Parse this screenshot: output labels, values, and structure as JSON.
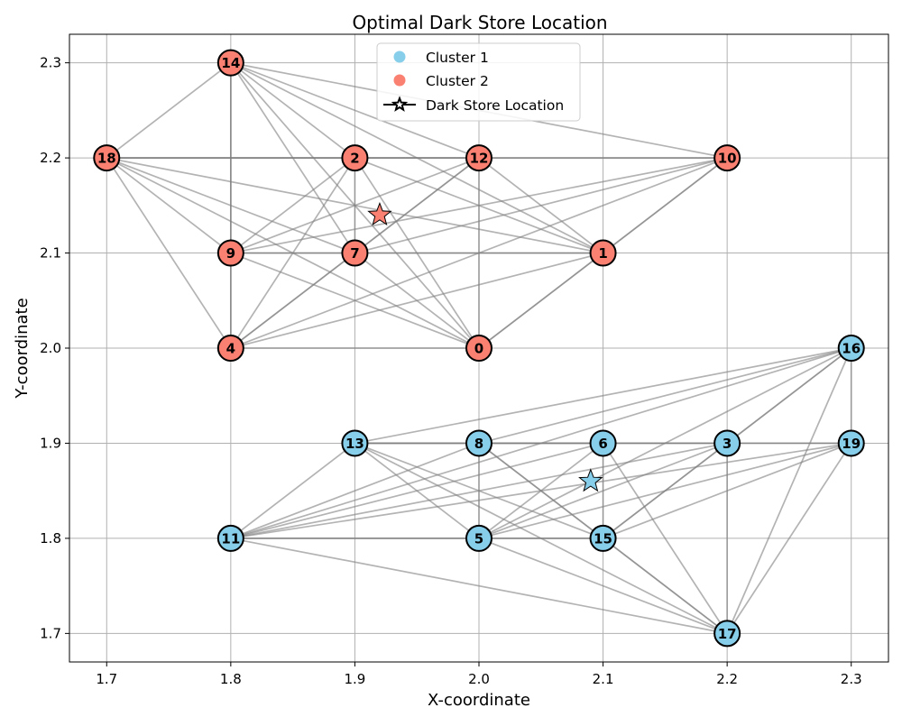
{
  "chart_data": {
    "type": "scatter",
    "title": "Optimal Dark Store Location",
    "xlabel": "X-coordinate",
    "ylabel": "Y-coordinate",
    "xlim": [
      1.67,
      2.33
    ],
    "ylim": [
      1.67,
      2.33
    ],
    "xticks": [
      "1.7",
      "1.8",
      "1.9",
      "2.0",
      "2.1",
      "2.2",
      "2.3"
    ],
    "yticks": [
      "1.7",
      "1.8",
      "1.9",
      "2.0",
      "2.1",
      "2.2",
      "2.3"
    ],
    "grid": true,
    "legend_position": "top-center",
    "colors": {
      "cluster_1": "#87ceeb",
      "cluster_2": "#fa8072",
      "edge": "#808080",
      "grid": "#b0b0b0"
    },
    "legend": [
      {
        "label": "Cluster 1",
        "marker": "circle",
        "color": "#87ceeb"
      },
      {
        "label": "Cluster 2",
        "marker": "circle",
        "color": "#fa8072"
      },
      {
        "label": "Dark Store Location",
        "marker": "star-line",
        "color": "#000000"
      }
    ],
    "nodes": [
      {
        "id": "0",
        "x": 2.0,
        "y": 2.0,
        "cluster": 2
      },
      {
        "id": "1",
        "x": 2.1,
        "y": 2.1,
        "cluster": 2
      },
      {
        "id": "2",
        "x": 1.9,
        "y": 2.2,
        "cluster": 2
      },
      {
        "id": "3",
        "x": 2.2,
        "y": 1.9,
        "cluster": 1
      },
      {
        "id": "4",
        "x": 1.8,
        "y": 2.0,
        "cluster": 2
      },
      {
        "id": "5",
        "x": 2.0,
        "y": 1.8,
        "cluster": 1
      },
      {
        "id": "6",
        "x": 2.1,
        "y": 1.9,
        "cluster": 1
      },
      {
        "id": "7",
        "x": 1.9,
        "y": 2.1,
        "cluster": 2
      },
      {
        "id": "8",
        "x": 2.0,
        "y": 1.9,
        "cluster": 1
      },
      {
        "id": "9",
        "x": 1.8,
        "y": 2.1,
        "cluster": 2
      },
      {
        "id": "10",
        "x": 2.2,
        "y": 2.2,
        "cluster": 2
      },
      {
        "id": "11",
        "x": 1.8,
        "y": 1.8,
        "cluster": 1
      },
      {
        "id": "12",
        "x": 2.0,
        "y": 2.2,
        "cluster": 2
      },
      {
        "id": "13",
        "x": 1.9,
        "y": 1.9,
        "cluster": 1
      },
      {
        "id": "14",
        "x": 1.8,
        "y": 2.3,
        "cluster": 2
      },
      {
        "id": "15",
        "x": 2.1,
        "y": 1.8,
        "cluster": 1
      },
      {
        "id": "16",
        "x": 2.3,
        "y": 2.0,
        "cluster": 1
      },
      {
        "id": "17",
        "x": 2.2,
        "y": 1.7,
        "cluster": 1
      },
      {
        "id": "18",
        "x": 1.7,
        "y": 2.2,
        "cluster": 2
      },
      {
        "id": "19",
        "x": 2.3,
        "y": 1.9,
        "cluster": 1
      }
    ],
    "dark_stores": [
      {
        "cluster": 2,
        "x": 1.92,
        "y": 2.14
      },
      {
        "cluster": 1,
        "x": 2.09,
        "y": 1.86
      }
    ],
    "edges": [
      [
        "14",
        "18"
      ],
      [
        "14",
        "9"
      ],
      [
        "14",
        "4"
      ],
      [
        "14",
        "2"
      ],
      [
        "14",
        "7"
      ],
      [
        "14",
        "12"
      ],
      [
        "14",
        "1"
      ],
      [
        "14",
        "0"
      ],
      [
        "14",
        "10"
      ],
      [
        "18",
        "2"
      ],
      [
        "18",
        "12"
      ],
      [
        "18",
        "10"
      ],
      [
        "18",
        "9"
      ],
      [
        "18",
        "4"
      ],
      [
        "18",
        "7"
      ],
      [
        "18",
        "0"
      ],
      [
        "18",
        "1"
      ],
      [
        "2",
        "12"
      ],
      [
        "2",
        "9"
      ],
      [
        "2",
        "7"
      ],
      [
        "2",
        "4"
      ],
      [
        "2",
        "0"
      ],
      [
        "2",
        "1"
      ],
      [
        "12",
        "10"
      ],
      [
        "12",
        "9"
      ],
      [
        "12",
        "7"
      ],
      [
        "12",
        "4"
      ],
      [
        "12",
        "0"
      ],
      [
        "12",
        "1"
      ],
      [
        "10",
        "1"
      ],
      [
        "10",
        "0"
      ],
      [
        "10",
        "9"
      ],
      [
        "10",
        "7"
      ],
      [
        "10",
        "4"
      ],
      [
        "9",
        "7"
      ],
      [
        "9",
        "1"
      ],
      [
        "9",
        "4"
      ],
      [
        "9",
        "0"
      ],
      [
        "7",
        "1"
      ],
      [
        "7",
        "4"
      ],
      [
        "7",
        "0"
      ],
      [
        "4",
        "0"
      ],
      [
        "4",
        "1"
      ],
      [
        "1",
        "0"
      ],
      [
        "13",
        "8"
      ],
      [
        "13",
        "6"
      ],
      [
        "13",
        "3"
      ],
      [
        "13",
        "19"
      ],
      [
        "13",
        "16"
      ],
      [
        "13",
        "11"
      ],
      [
        "13",
        "5"
      ],
      [
        "13",
        "15"
      ],
      [
        "13",
        "17"
      ],
      [
        "8",
        "6"
      ],
      [
        "8",
        "5"
      ],
      [
        "8",
        "15"
      ],
      [
        "8",
        "11"
      ],
      [
        "8",
        "16"
      ],
      [
        "8",
        "17"
      ],
      [
        "6",
        "3"
      ],
      [
        "6",
        "15"
      ],
      [
        "6",
        "17"
      ],
      [
        "6",
        "5"
      ],
      [
        "6",
        "11"
      ],
      [
        "3",
        "19"
      ],
      [
        "3",
        "16"
      ],
      [
        "3",
        "15"
      ],
      [
        "3",
        "17"
      ],
      [
        "3",
        "11"
      ],
      [
        "3",
        "5"
      ],
      [
        "19",
        "16"
      ],
      [
        "19",
        "17"
      ],
      [
        "19",
        "11"
      ],
      [
        "19",
        "5"
      ],
      [
        "19",
        "15"
      ],
      [
        "16",
        "17"
      ],
      [
        "16",
        "5"
      ],
      [
        "16",
        "11"
      ],
      [
        "16",
        "15"
      ],
      [
        "11",
        "5"
      ],
      [
        "11",
        "15"
      ],
      [
        "11",
        "17"
      ],
      [
        "5",
        "15"
      ],
      [
        "5",
        "17"
      ],
      [
        "15",
        "17"
      ]
    ]
  }
}
